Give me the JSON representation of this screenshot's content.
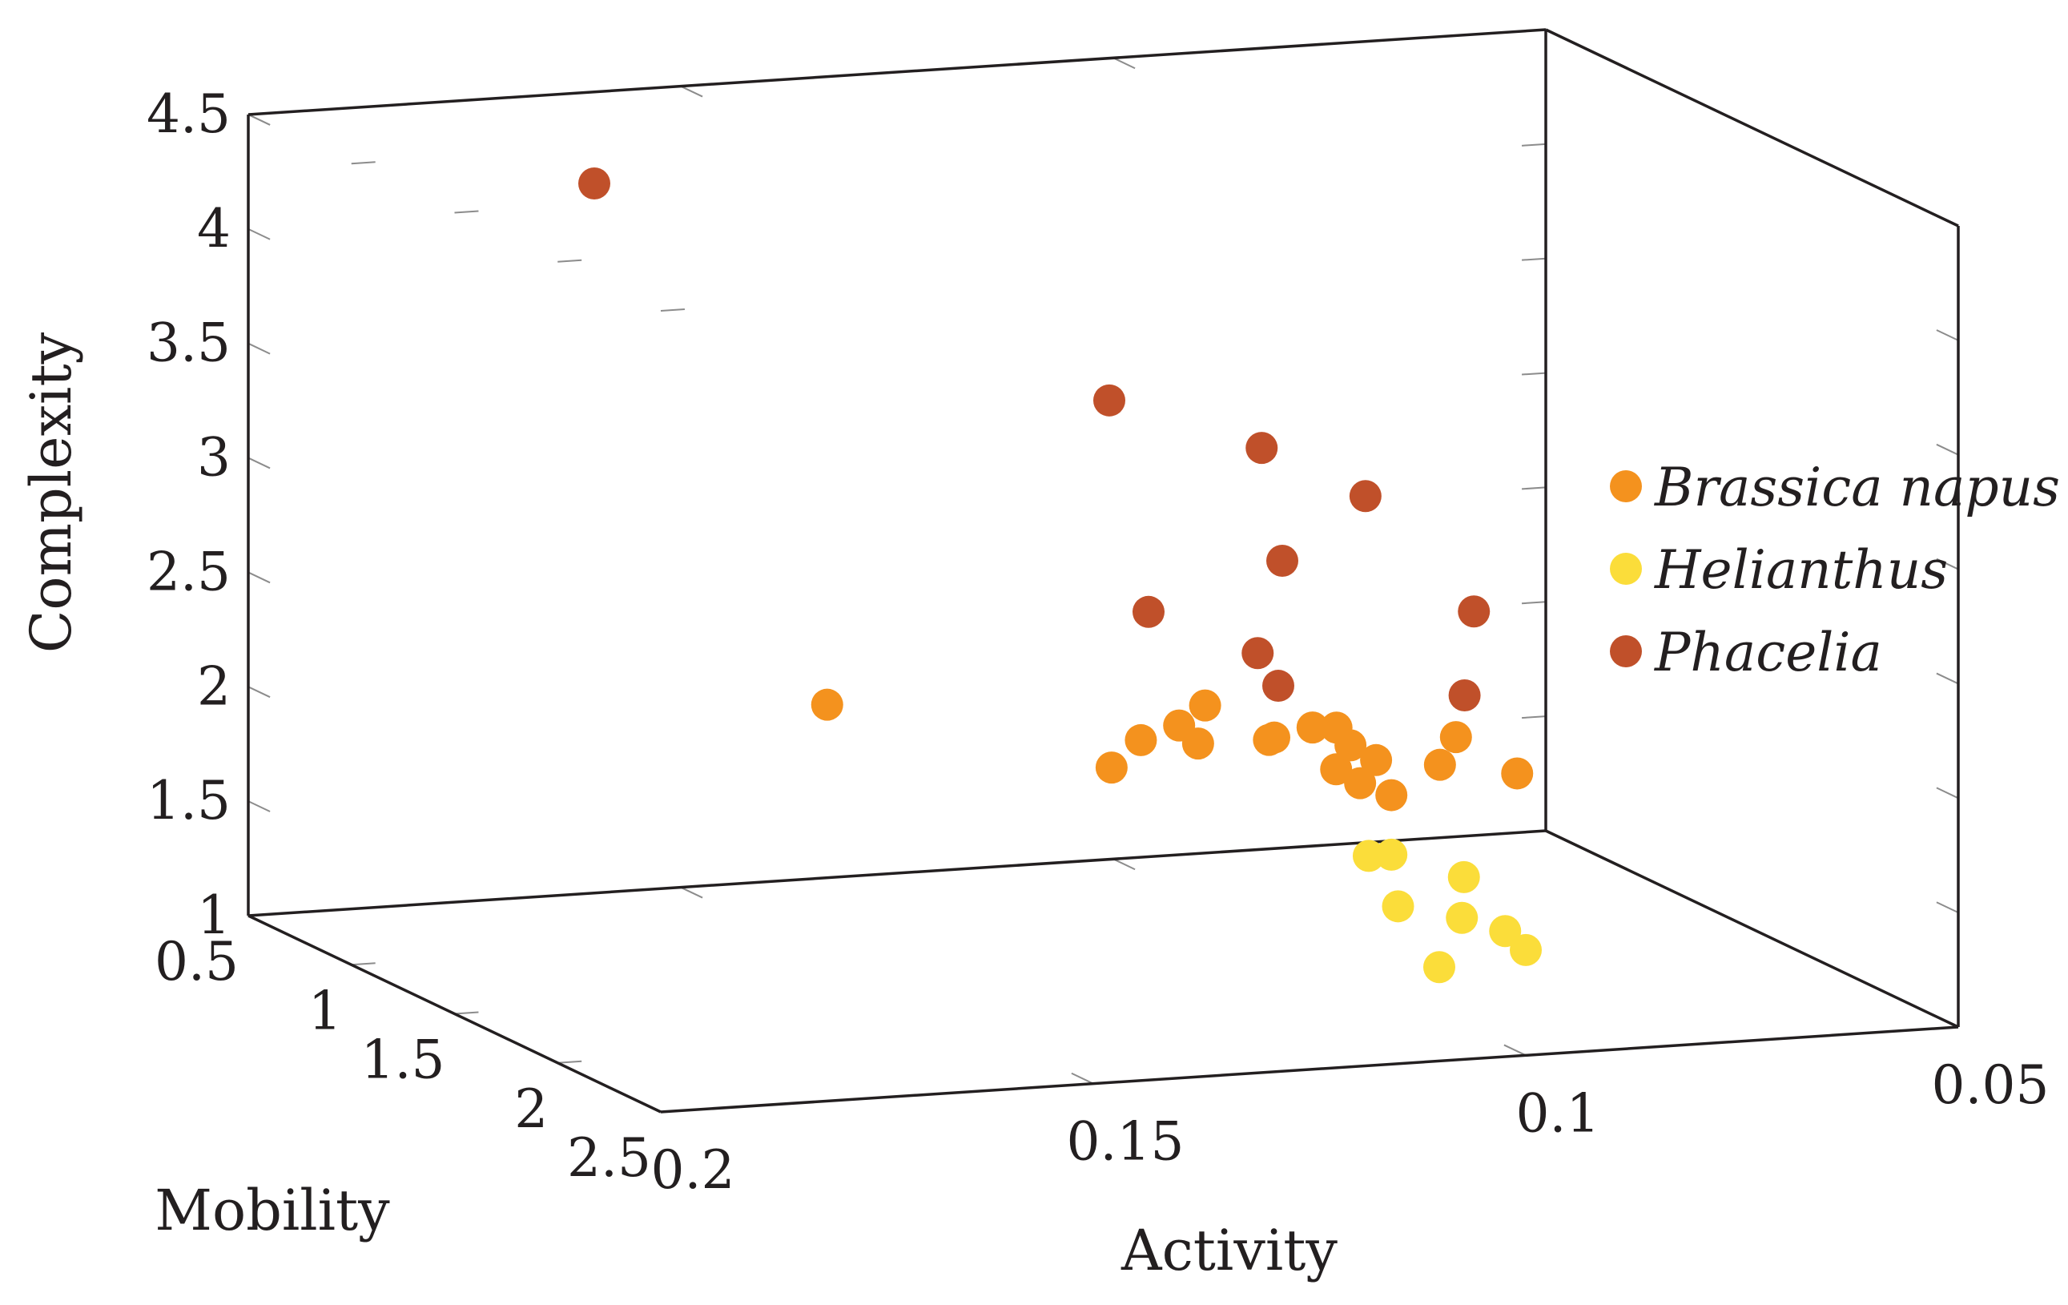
{
  "chart_data": {
    "type": "scatter",
    "projection": "3d",
    "xlabel": "Activity",
    "ylabel": "Mobility",
    "zlabel": "Complexity",
    "xlim": [
      0.05,
      0.2
    ],
    "ylim": [
      0.5,
      2.5
    ],
    "zlim": [
      1,
      4.5
    ],
    "x_ticks": [
      "0.05",
      "0.1",
      "0.15",
      "0.2"
    ],
    "y_ticks": [
      "0.5",
      "1",
      "1.5",
      "2",
      "2.5"
    ],
    "z_ticks": [
      "1",
      "1.5",
      "2",
      "2.5",
      "3",
      "3.5",
      "4",
      "4.5"
    ],
    "grid": false,
    "legend_position": "right",
    "series": [
      {
        "name": "Brassica napus",
        "color": "#f4921e",
        "points": [
          {
            "x": 0.129,
            "y": 1.85,
            "z": 2.17
          },
          {
            "x": 0.118,
            "y": 1.7,
            "z": 2.23
          },
          {
            "x": 0.121,
            "y": 1.7,
            "z": 2.15
          },
          {
            "x": 0.12,
            "y": 1.75,
            "z": 2.09
          },
          {
            "x": 0.104,
            "y": 1.75,
            "z": 2.12
          },
          {
            "x": 0.113,
            "y": 1.8,
            "z": 2.11
          },
          {
            "x": 0.13,
            "y": 1.75,
            "z": 2.01
          },
          {
            "x": 0.102,
            "y": 1.55,
            "z": 2.03
          },
          {
            "x": 0.11,
            "y": 1.7,
            "z": 2.07
          },
          {
            "x": 0.103,
            "y": 1.9,
            "z": 2.04
          },
          {
            "x": 0.089,
            "y": 1.7,
            "z": 2.02
          },
          {
            "x": 0.11,
            "y": 2.0,
            "z": 2.06
          },
          {
            "x": 0.098,
            "y": 2.0,
            "z": 2.05
          },
          {
            "x": 0.1,
            "y": 1.65,
            "z": 1.99
          },
          {
            "x": 0.112,
            "y": 2.2,
            "z": 2.09
          },
          {
            "x": 0.106,
            "y": 2.1,
            "z": 1.98
          },
          {
            "x": 0.145,
            "y": 1.0,
            "z": 2.0
          },
          {
            "x": 0.07,
            "y": 1.2,
            "z": 1.6
          }
        ]
      },
      {
        "name": "Helianthus",
        "color": "#fbdd3a",
        "points": [
          {
            "x": 0.111,
            "y": 2.2,
            "z": 1.77
          },
          {
            "x": 0.106,
            "y": 2.1,
            "z": 1.72
          },
          {
            "x": 0.1,
            "y": 2.2,
            "z": 1.65
          },
          {
            "x": 0.11,
            "y": 2.3,
            "z": 1.59
          },
          {
            "x": 0.105,
            "y": 2.4,
            "z": 1.57
          },
          {
            "x": 0.1,
            "y": 2.4,
            "z": 1.5
          },
          {
            "x": 0.1,
            "y": 2.5,
            "z": 1.46
          },
          {
            "x": 0.11,
            "y": 2.5,
            "z": 1.41
          }
        ]
      },
      {
        "name": "Phacelia",
        "color": "#c0502a",
        "points": [
          {
            "x": 0.088,
            "y": 1.7,
            "z": 2.2
          },
          {
            "x": 0.16,
            "y": 0.5,
            "z": 4.1
          },
          {
            "x": 0.11,
            "y": 0.9,
            "z": 3.2
          },
          {
            "x": 0.09,
            "y": 0.8,
            "z": 2.9
          },
          {
            "x": 0.078,
            "y": 0.8,
            "z": 2.66
          },
          {
            "x": 0.09,
            "y": 0.9,
            "z": 2.45
          },
          {
            "x": 0.115,
            "y": 1.3,
            "z": 2.46
          },
          {
            "x": 0.075,
            "y": 1.2,
            "z": 2.32
          },
          {
            "x": 0.1,
            "y": 1.2,
            "z": 2.2
          },
          {
            "x": 0.1,
            "y": 1.3,
            "z": 2.1
          }
        ]
      }
    ]
  }
}
